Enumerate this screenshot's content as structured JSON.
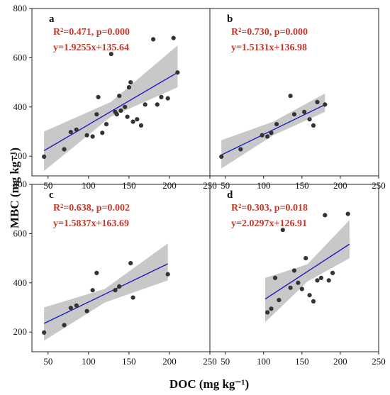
{
  "ylabel": "MBC (mg kg⁻¹)",
  "xlabel": "DOC (mg kg⁻¹)",
  "xticks": [
    50,
    100,
    150,
    200,
    250
  ],
  "yticks": [
    200,
    400,
    600,
    800
  ],
  "colors": {
    "point": "#333333",
    "line": "#1f1fbf",
    "band": "#c8c8c8",
    "annotation": "#c0392b"
  },
  "chart_data": [
    {
      "type": "scatter",
      "label": "a",
      "r2_text": "R²=0.471, p=0.000",
      "eq_text": "y=1.9255x+135.64",
      "xlim": [
        30,
        250
      ],
      "ylim": [
        120,
        800
      ],
      "x": [
        45,
        70,
        78,
        85,
        98,
        105,
        110,
        112,
        117,
        122,
        128,
        133,
        135,
        138,
        140,
        145,
        148,
        150,
        152,
        155,
        160,
        165,
        170,
        180,
        185,
        190,
        198,
        205,
        210
      ],
      "y": [
        198,
        228,
        298,
        308,
        285,
        280,
        370,
        440,
        295,
        330,
        615,
        380,
        370,
        445,
        385,
        400,
        360,
        480,
        500,
        340,
        350,
        325,
        410,
        675,
        410,
        440,
        435,
        680,
        540
      ],
      "fit": {
        "slope": 1.9255,
        "intercept": 135.64,
        "x_range": [
          45,
          210
        ]
      },
      "ci_band": {
        "x": [
          45,
          127.5,
          210
        ],
        "lower": [
          140,
          360,
          480
        ],
        "upper": [
          300,
          420,
          650
        ]
      }
    },
    {
      "type": "scatter",
      "label": "b",
      "r2_text": "R²=0.730, p=0.000",
      "eq_text": "y=1.5131x+136.98",
      "xlim": [
        30,
        250
      ],
      "ylim": [
        120,
        800
      ],
      "x": [
        45,
        70,
        98,
        105,
        110,
        117,
        135,
        140,
        153,
        160,
        165,
        170,
        180
      ],
      "y": [
        198,
        228,
        285,
        280,
        295,
        330,
        445,
        370,
        380,
        350,
        325,
        420,
        410
      ],
      "fit": {
        "slope": 1.5131,
        "intercept": 136.98,
        "x_range": [
          45,
          180
        ]
      },
      "ci_band": {
        "x": [
          45,
          112.5,
          180
        ],
        "lower": [
          150,
          285,
          380
        ],
        "upper": [
          265,
          340,
          455
        ]
      }
    },
    {
      "type": "scatter",
      "label": "c",
      "r2_text": "R²=0.638, p=0.002",
      "eq_text": "y=1.5837x+163.69",
      "xlim": [
        30,
        250
      ],
      "ylim": [
        120,
        800
      ],
      "x": [
        45,
        70,
        78,
        85,
        98,
        105,
        110,
        133,
        138,
        152,
        155,
        198
      ],
      "y": [
        198,
        228,
        298,
        308,
        285,
        370,
        440,
        370,
        385,
        480,
        340,
        435
      ],
      "fit": {
        "slope": 1.5837,
        "intercept": 163.69,
        "x_range": [
          45,
          198
        ]
      },
      "ci_band": {
        "x": [
          45,
          120,
          198
        ],
        "lower": [
          165,
          320,
          410
        ],
        "upper": [
          300,
          375,
          560
        ]
      }
    },
    {
      "type": "scatter",
      "label": "d",
      "r2_text": "R²=0.303,  p=0.018",
      "eq_text": "y=2.0297x+126.91",
      "xlim": [
        30,
        250
      ],
      "ylim": [
        120,
        800
      ],
      "x": [
        105,
        110,
        115,
        120,
        125,
        135,
        140,
        145,
        150,
        155,
        160,
        165,
        170,
        175,
        180,
        185,
        190,
        210
      ],
      "y": [
        280,
        295,
        420,
        330,
        615,
        380,
        450,
        400,
        375,
        500,
        350,
        325,
        410,
        420,
        675,
        410,
        440,
        680
      ],
      "fit": {
        "slope": 2.0297,
        "intercept": 126.91,
        "x_range": [
          102,
          212
        ]
      },
      "ci_band": {
        "x": [
          102,
          157,
          212
        ],
        "lower": [
          240,
          405,
          500
        ],
        "upper": [
          420,
          475,
          655
        ]
      }
    }
  ]
}
